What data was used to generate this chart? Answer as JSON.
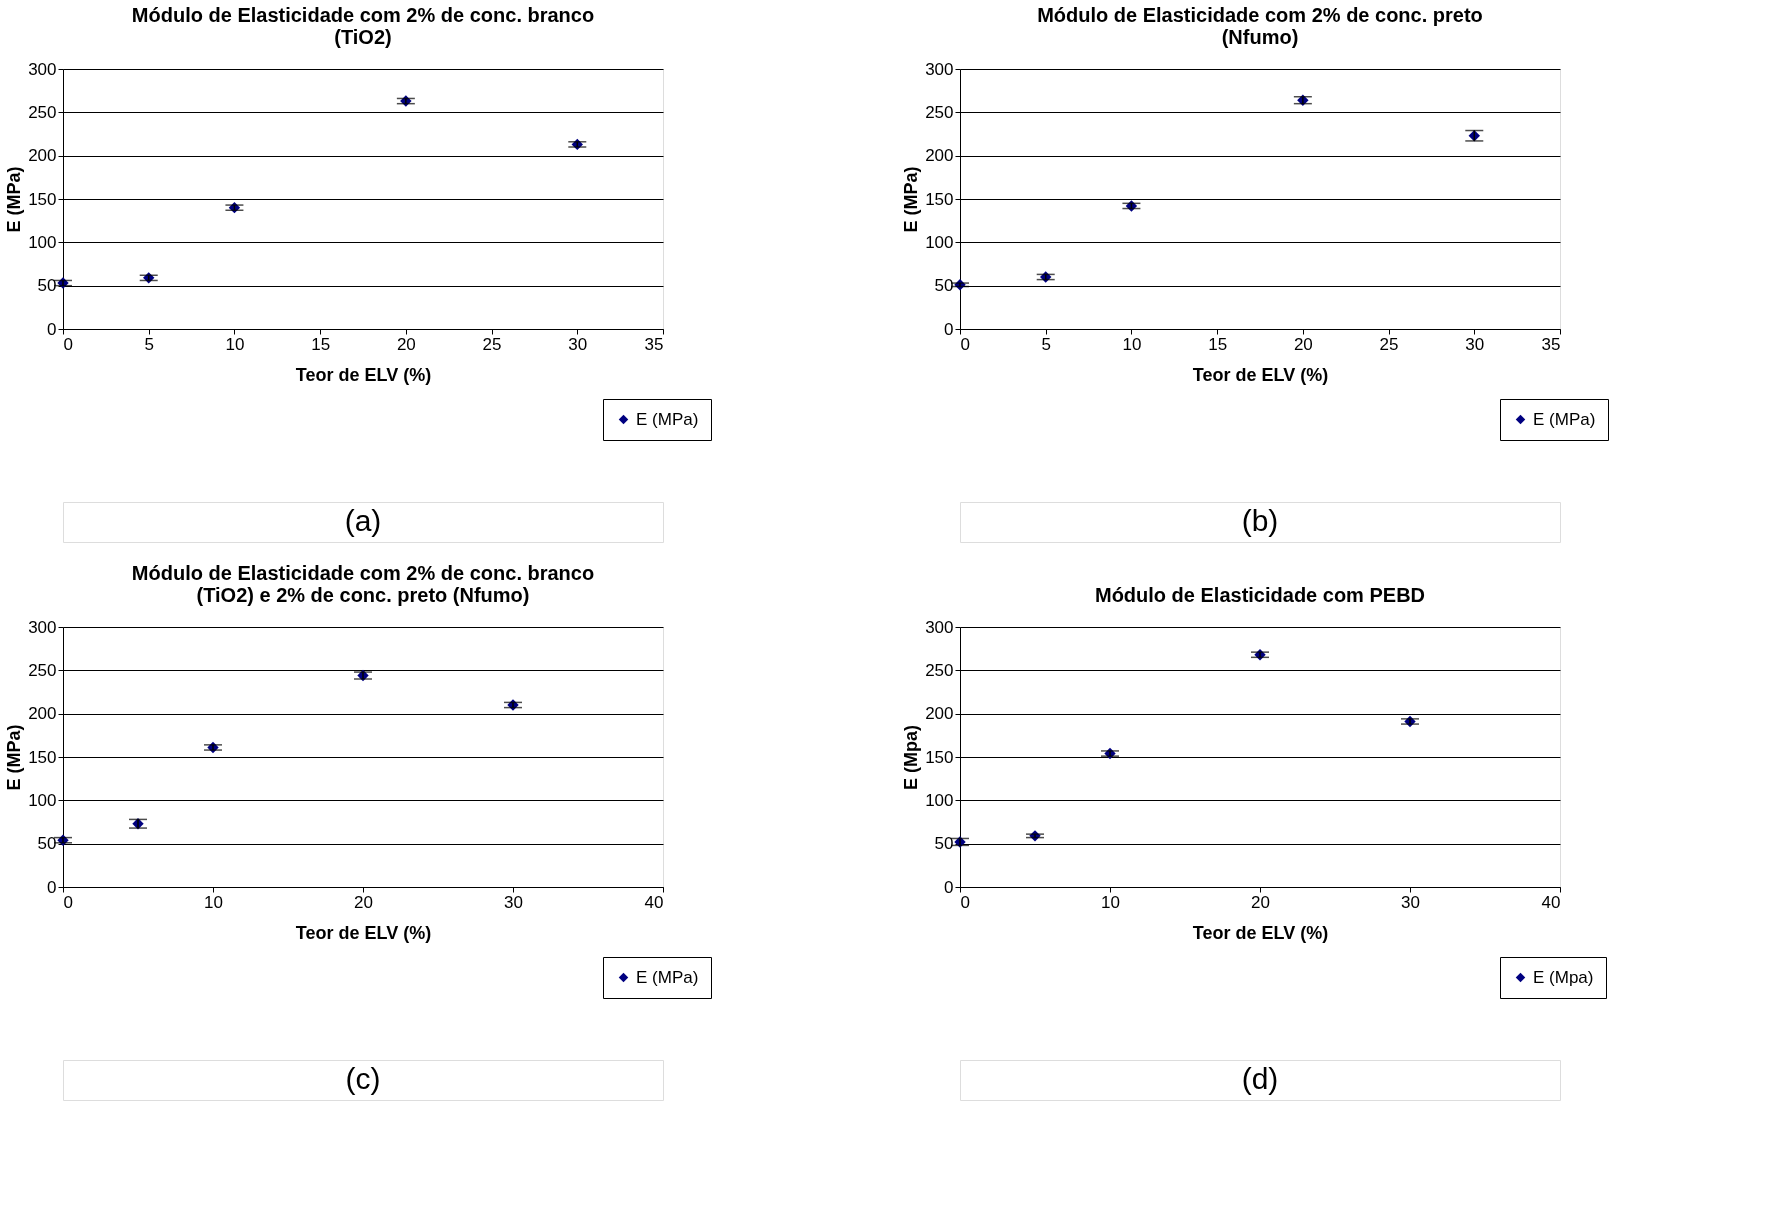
{
  "chart_data": [
    {
      "type": "scatter",
      "title": "Módulo de Elasticidade com 2% de conc. branco\n(TiO2)",
      "xlabel": "Teor de ELV (%)",
      "ylabel": "E (MPa)",
      "x": [
        0,
        5,
        10,
        20,
        30
      ],
      "series": [
        {
          "name": "E (MPa)",
          "color": "#000080",
          "values": [
            53,
            59,
            140,
            263,
            213
          ],
          "errors": [
            3,
            3,
            3,
            3,
            3
          ]
        }
      ],
      "xlim": [
        0,
        35
      ],
      "xticks": [
        0,
        5,
        10,
        15,
        20,
        25,
        30,
        35
      ],
      "ylim": [
        0,
        300
      ],
      "yticks": [
        0,
        50,
        100,
        150,
        200,
        250,
        300
      ],
      "grid": "y",
      "legend": "bottom right",
      "marker": "diamond",
      "annotations": [
        "(a)"
      ]
    },
    {
      "type": "scatter",
      "title": "Módulo de Elasticidade com 2% de conc. preto\n(Nfumo)",
      "xlabel": "Teor de ELV (%)",
      "ylabel": "E (MPa)",
      "x": [
        0,
        5,
        10,
        20,
        30
      ],
      "series": [
        {
          "name": "E (MPa)",
          "color": "#000080",
          "values": [
            51,
            60,
            142,
            264,
            223
          ],
          "errors": [
            2,
            3,
            3,
            4,
            6
          ]
        }
      ],
      "xlim": [
        0,
        35
      ],
      "xticks": [
        0,
        5,
        10,
        15,
        20,
        25,
        30,
        35
      ],
      "ylim": [
        0,
        300
      ],
      "yticks": [
        0,
        50,
        100,
        150,
        200,
        250,
        300
      ],
      "grid": "y",
      "legend": "bottom right",
      "marker": "diamond",
      "annotations": [
        "(b)"
      ]
    },
    {
      "type": "scatter",
      "title": "Módulo de Elasticidade com 2% de conc. branco\n(TiO2) e 2% de conc. preto (Nfumo)",
      "xlabel": "Teor de ELV (%)",
      "ylabel": "E (MPa)",
      "x": [
        0,
        5,
        10,
        20,
        30
      ],
      "series": [
        {
          "name": "E (MPa)",
          "color": "#000080",
          "values": [
            54,
            73,
            161,
            244,
            210
          ],
          "errors": [
            3,
            5,
            3,
            4,
            3
          ]
        }
      ],
      "xlim": [
        0,
        40
      ],
      "xticks": [
        0,
        10,
        20,
        30,
        40
      ],
      "ylim": [
        0,
        300
      ],
      "yticks": [
        0,
        50,
        100,
        150,
        200,
        250,
        300
      ],
      "grid": "y",
      "legend": "bottom right",
      "marker": "diamond",
      "annotations": [
        "(c)"
      ]
    },
    {
      "type": "scatter",
      "title": "Módulo de Elasticidade com PEBD",
      "xlabel": "Teor de ELV (%)",
      "ylabel": "E (Mpa)",
      "x": [
        0,
        5,
        10,
        20,
        30
      ],
      "series": [
        {
          "name": "E (Mpa)",
          "color": "#000080",
          "values": [
            52,
            59,
            154,
            268,
            191
          ],
          "errors": [
            4,
            2,
            3,
            3,
            3
          ]
        }
      ],
      "xlim": [
        0,
        40
      ],
      "xticks": [
        0,
        10,
        20,
        30,
        40
      ],
      "ylim": [
        0,
        300
      ],
      "yticks": [
        0,
        50,
        100,
        150,
        200,
        250,
        300
      ],
      "grid": "y",
      "legend": "bottom right",
      "marker": "diamond",
      "annotations": [
        "(d)"
      ]
    }
  ]
}
